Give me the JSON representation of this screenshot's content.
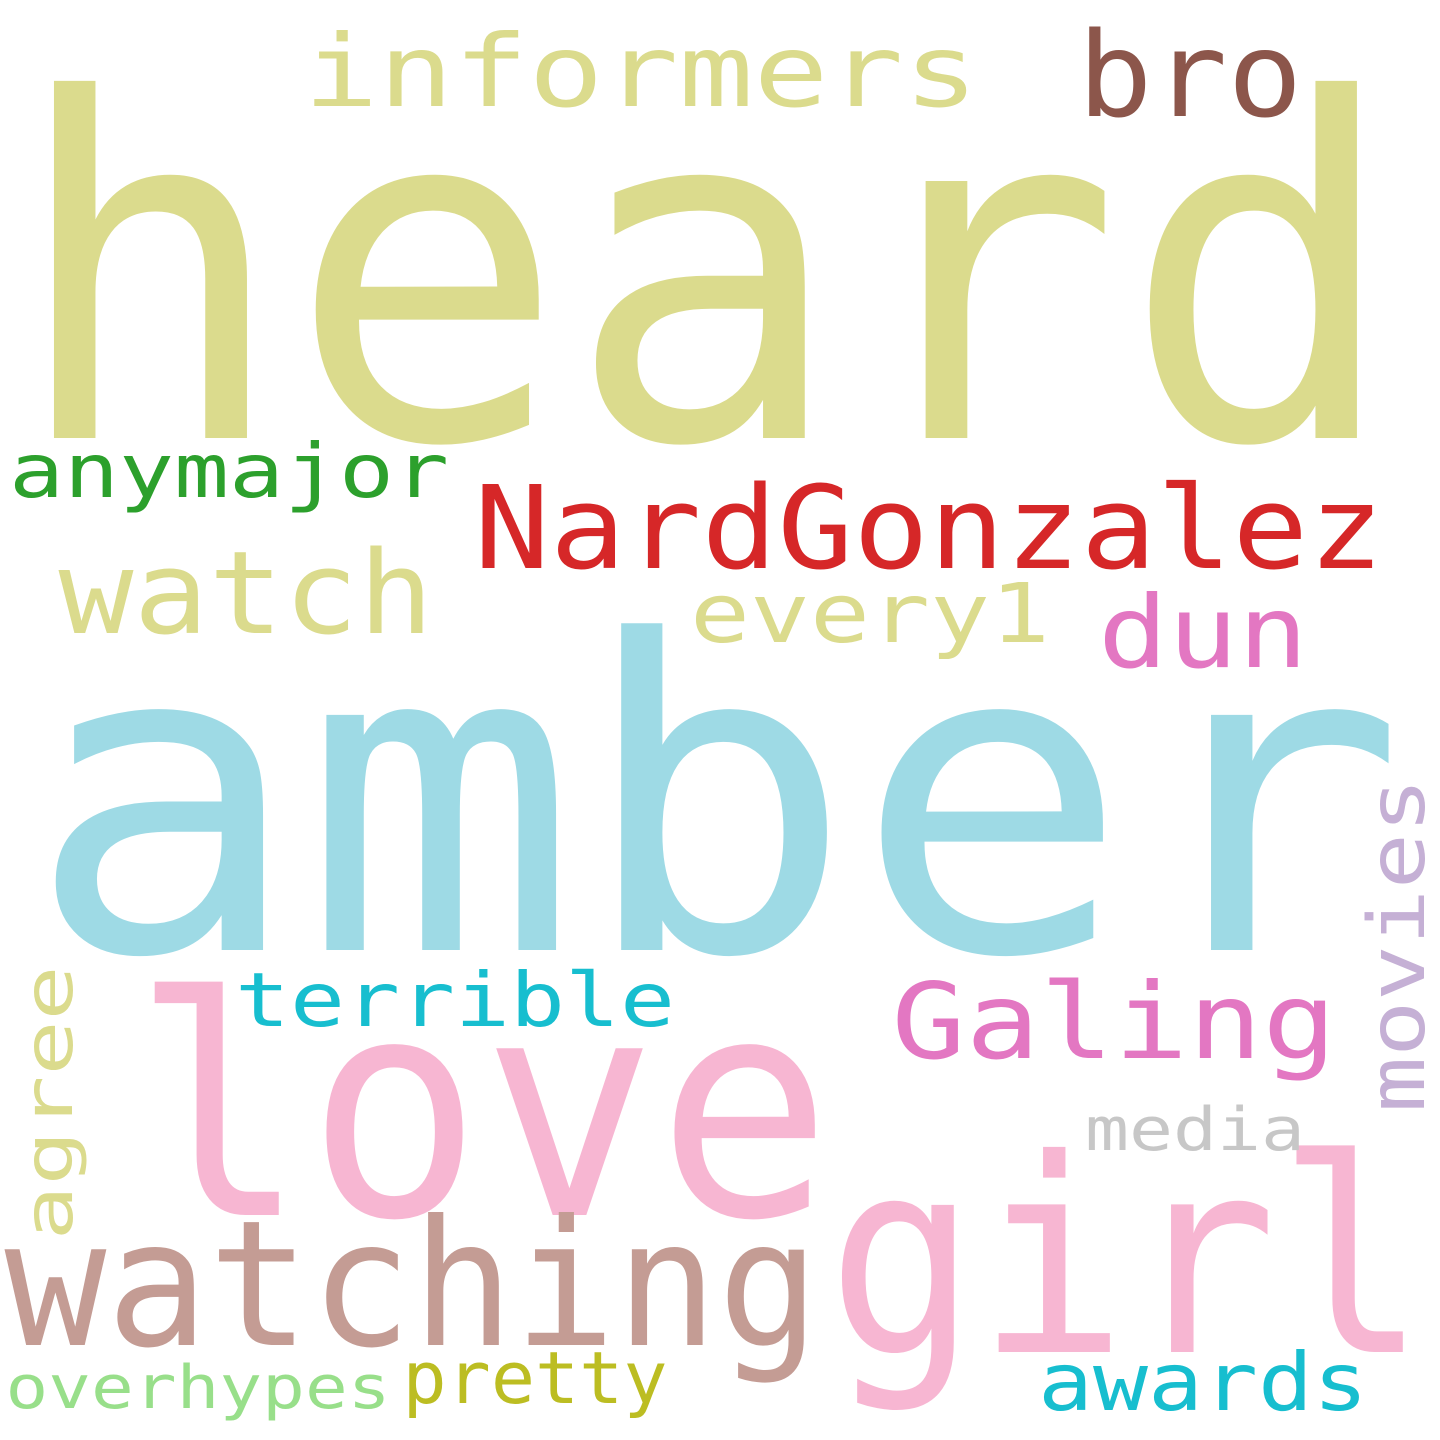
{
  "words": [
    {
      "text": "heard",
      "color": "#dbdb8d"
    },
    {
      "text": "amber",
      "color": "#9edae5"
    },
    {
      "text": "love",
      "color": "#f7b6d2"
    },
    {
      "text": "girl",
      "color": "#f7b6d2"
    },
    {
      "text": "watching",
      "color": "#c49c94"
    },
    {
      "text": "NardGonzalez",
      "color": "#d62728"
    },
    {
      "text": "informers",
      "color": "#dbdb8d"
    },
    {
      "text": "bro",
      "color": "#8c564b"
    },
    {
      "text": "anymajor",
      "color": "#2ca02c"
    },
    {
      "text": "watch",
      "color": "#dbdb8d"
    },
    {
      "text": "every1",
      "color": "#dbdb8d"
    },
    {
      "text": "dun",
      "color": "#e377c2"
    },
    {
      "text": "Galing",
      "color": "#e377c2"
    },
    {
      "text": "terrible",
      "color": "#17becf"
    },
    {
      "text": "movies",
      "color": "#c5b0d5"
    },
    {
      "text": "agree",
      "color": "#dbdb8d"
    },
    {
      "text": "media",
      "color": "#c7c7c7"
    },
    {
      "text": "awards",
      "color": "#17becf"
    },
    {
      "text": "overhypes",
      "color": "#98df8a"
    },
    {
      "text": "pretty",
      "color": "#bcbd22"
    }
  ]
}
